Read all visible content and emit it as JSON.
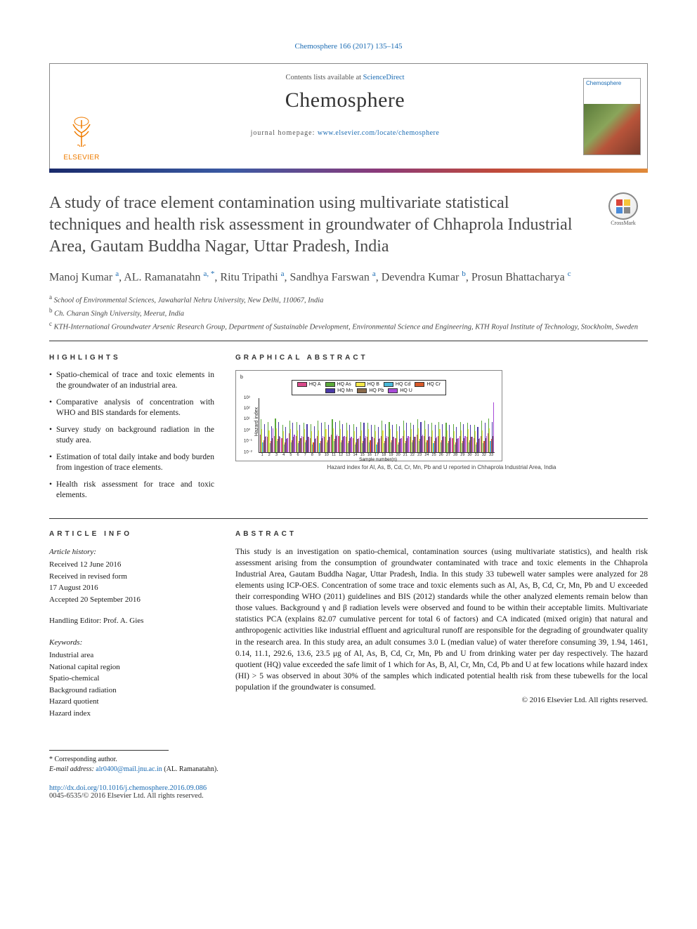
{
  "citation": "Chemosphere 166 (2017) 135–145",
  "header": {
    "contents_prefix": "Contents lists available at ",
    "contents_link": "ScienceDirect",
    "journal": "Chemosphere",
    "homepage_prefix": "journal homepage: ",
    "homepage_link": "www.elsevier.com/locate/chemosphere",
    "publisher": "ELSEVIER",
    "cover_label": "Chemosphere"
  },
  "gradient_colors": [
    "#1a2a6b",
    "#3a5aa3",
    "#8a3a7a",
    "#c04a3a",
    "#e08a3a"
  ],
  "title": "A study of trace element contamination using multivariate statistical techniques and health risk assessment in groundwater of Chhaprola Industrial Area, Gautam Buddha Nagar, Uttar Pradesh, India",
  "crossmark_label": "CrossMark",
  "authors_html": "Manoj Kumar <sup>a</sup>, AL. Ramanatahn <sup>a, *</sup>, Ritu Tripathi <sup>a</sup>, Sandhya Farswan <sup>a</sup>, Devendra Kumar <sup>b</sup>, Prosun Bhattacharya <sup>c</sup>",
  "affiliations": [
    {
      "sup": "a",
      "text": "School of Environmental Sciences, Jawaharlal Nehru University, New Delhi, 110067, India"
    },
    {
      "sup": "b",
      "text": "Ch. Charan Singh University, Meerut, India"
    },
    {
      "sup": "c",
      "text": "KTH-International Groundwater Arsenic Research Group, Department of Sustainable Development, Environmental Science and Engineering, KTH Royal Institute of Technology, Stockholm, Sweden"
    }
  ],
  "highlights_label": "HIGHLIGHTS",
  "highlights": [
    "Spatio-chemical of trace and toxic elements in the groundwater of an industrial area.",
    "Comparative analysis of concentration with WHO and BIS standards for elements.",
    "Survey study on background radiation in the study area.",
    "Estimation of total daily intake and body burden from ingestion of trace elements.",
    "Health risk assessment for trace and toxic elements."
  ],
  "graphical_label": "GRAPHICAL ABSTRACT",
  "chart": {
    "type": "bar",
    "ylabel": "Hazard index",
    "yscale": "log",
    "yticks": [
      "10⁻²",
      "10⁻¹",
      "10⁰",
      "10¹",
      "10²",
      "10³"
    ],
    "ytick_pos_pct": [
      0,
      20,
      40,
      60,
      80,
      100
    ],
    "xlabel": "Sample number(n)",
    "caption": "Hazard index for Al, As, B, Cd, Cr, Mn, Pb and U reported in Chhaprola Industrial Area, India",
    "n_groups": 33,
    "series": [
      {
        "name": "HQ A",
        "color": "#d94a8a"
      },
      {
        "name": "HQ As",
        "color": "#5aa83a"
      },
      {
        "name": "HQ B",
        "color": "#f5e84a"
      },
      {
        "name": "HQ Cd",
        "color": "#4ab8d8"
      },
      {
        "name": "HQ Cr",
        "color": "#d85a2a"
      },
      {
        "name": "HQ Mn",
        "color": "#4a3aa8"
      },
      {
        "name": "HQ Pb",
        "color": "#8a6a4a"
      },
      {
        "name": "HQ U",
        "color": "#a84ad8"
      }
    ],
    "group_heights_pct": [
      [
        32,
        60,
        42,
        18,
        22,
        52,
        28,
        30
      ],
      [
        28,
        55,
        40,
        16,
        20,
        48,
        26,
        44
      ],
      [
        30,
        62,
        44,
        20,
        24,
        56,
        30,
        28
      ],
      [
        26,
        50,
        38,
        14,
        18,
        46,
        24,
        26
      ],
      [
        34,
        58,
        42,
        18,
        22,
        54,
        28,
        32
      ],
      [
        30,
        56,
        40,
        16,
        20,
        50,
        26,
        30
      ],
      [
        28,
        54,
        42,
        18,
        22,
        52,
        28,
        28
      ],
      [
        26,
        52,
        38,
        14,
        18,
        48,
        24,
        26
      ],
      [
        30,
        58,
        40,
        16,
        20,
        54,
        26,
        30
      ],
      [
        28,
        56,
        42,
        18,
        22,
        50,
        28,
        28
      ],
      [
        32,
        60,
        44,
        20,
        24,
        56,
        30,
        32
      ],
      [
        30,
        58,
        42,
        18,
        22,
        52,
        28,
        30
      ],
      [
        28,
        54,
        40,
        16,
        20,
        50,
        26,
        28
      ],
      [
        26,
        52,
        38,
        14,
        18,
        46,
        24,
        26
      ],
      [
        30,
        56,
        40,
        16,
        20,
        54,
        26,
        30
      ],
      [
        28,
        54,
        42,
        18,
        22,
        50,
        28,
        28
      ],
      [
        26,
        50,
        38,
        14,
        18,
        46,
        24,
        26
      ],
      [
        30,
        58,
        40,
        16,
        20,
        52,
        26,
        30
      ],
      [
        28,
        56,
        42,
        18,
        22,
        50,
        28,
        28
      ],
      [
        26,
        52,
        38,
        14,
        18,
        48,
        24,
        26
      ],
      [
        30,
        58,
        40,
        16,
        20,
        54,
        26,
        30
      ],
      [
        28,
        54,
        42,
        18,
        22,
        50,
        28,
        28
      ],
      [
        32,
        60,
        44,
        20,
        24,
        56,
        30,
        32
      ],
      [
        30,
        58,
        42,
        18,
        22,
        52,
        28,
        30
      ],
      [
        28,
        54,
        40,
        16,
        20,
        50,
        26,
        28
      ],
      [
        30,
        56,
        42,
        18,
        22,
        52,
        28,
        30
      ],
      [
        28,
        54,
        40,
        16,
        20,
        50,
        26,
        28
      ],
      [
        26,
        52,
        38,
        14,
        18,
        46,
        24,
        26
      ],
      [
        30,
        56,
        40,
        16,
        20,
        52,
        26,
        30
      ],
      [
        28,
        54,
        42,
        18,
        22,
        50,
        28,
        28
      ],
      [
        26,
        50,
        38,
        14,
        18,
        46,
        24,
        26
      ],
      [
        30,
        58,
        40,
        16,
        20,
        54,
        26,
        30
      ],
      [
        34,
        62,
        44,
        20,
        24,
        56,
        30,
        92
      ]
    ]
  },
  "article_info_label": "ARTICLE INFO",
  "article_info": {
    "history_label": "Article history:",
    "history": [
      "Received 12 June 2016",
      "Received in revised form",
      "17 August 2016",
      "Accepted 20 September 2016"
    ],
    "editor_line": "Handling Editor: Prof. A. Gies",
    "keywords_label": "Keywords:",
    "keywords": [
      "Industrial area",
      "National capital region",
      "Spatio-chemical",
      "Background radiation",
      "Hazard quotient",
      "Hazard index"
    ]
  },
  "abstract_label": "ABSTRACT",
  "abstract": "This study is an investigation on spatio-chemical, contamination sources (using multivariate statistics), and health risk assessment arising from the consumption of groundwater contaminated with trace and toxic elements in the Chhaprola Industrial Area, Gautam Buddha Nagar, Uttar Pradesh, India. In this study 33 tubewell water samples were analyzed for 28 elements using ICP-OES. Concentration of some trace and toxic elements such as Al, As, B, Cd, Cr, Mn, Pb and U exceeded their corresponding WHO (2011) guidelines and BIS (2012) standards while the other analyzed elements remain below than those values. Background γ and β radiation levels were observed and found to be within their acceptable limits. Multivariate statistics PCA (explains 82.07 cumulative percent for total 6 of factors) and CA indicated (mixed origin) that natural and anthropogenic activities like industrial effluent and agricultural runoff are responsible for the degrading of groundwater quality in the research area. In this study area, an adult consumes 3.0 L (median value) of water therefore consuming 39, 1.94, 1461, 0.14, 11.1, 292.6, 13.6, 23.5 μg of Al, As, B, Cd, Cr, Mn, Pb and U from drinking water per day respectively. The hazard quotient (HQ) value exceeded the safe limit of 1 which for As, B, Al, Cr, Mn, Cd, Pb and U at few locations while hazard index (HI) > 5 was observed in about 30% of the samples which indicated potential health risk from these tubewells for the local population if the groundwater is consumed.",
  "copyright": "© 2016 Elsevier Ltd. All rights reserved.",
  "footnote": {
    "corr": "* Corresponding author.",
    "email_label": "E-mail address: ",
    "email": "alr0400@mail.jnu.ac.in",
    "email_who": " (AL. Ramanatahn)."
  },
  "doi": {
    "link": "http://dx.doi.org/10.1016/j.chemosphere.2016.09.086",
    "line2": "0045-6535/© 2016 Elsevier Ltd. All rights reserved."
  }
}
